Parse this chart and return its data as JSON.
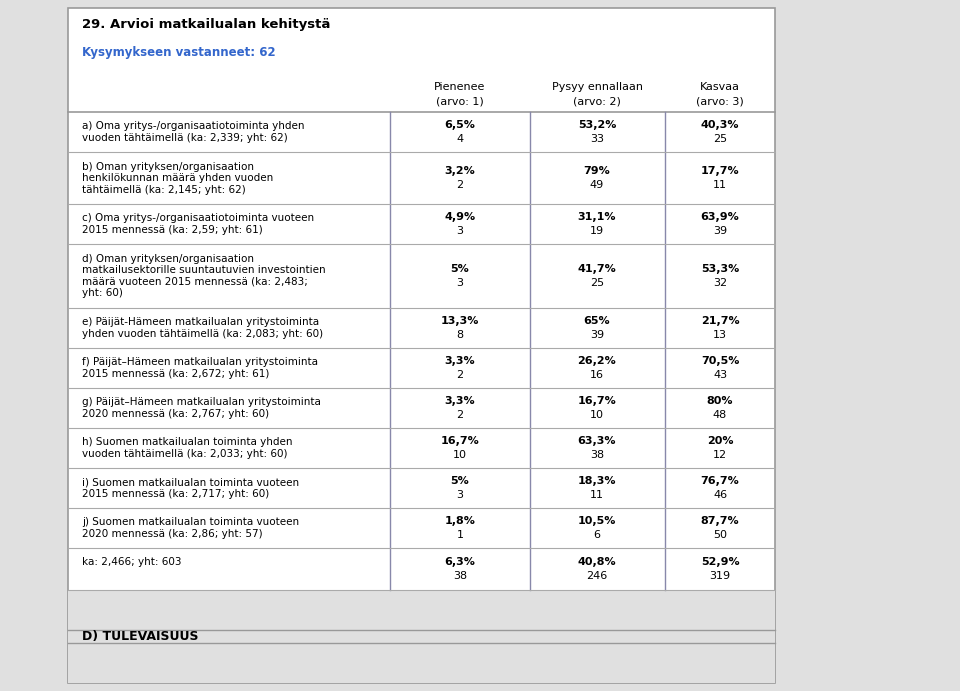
{
  "title": "29. Arvioi matkailualan kehitystä",
  "subtitle": "Kysymykseen vastanneet: 62",
  "col_headers": [
    [
      "Pienenee",
      "(arvo: 1)"
    ],
    [
      "Pysyy ennallaan",
      "(arvo: 2)"
    ],
    [
      "Kasvaa",
      "(arvo: 3)"
    ]
  ],
  "rows": [
    {
      "label": "a) Oma yritys-/organisaatiotoiminta yhden\nvuoden tähtäimellä (ka: 2,339; yht: 62)",
      "pct": [
        "6,5%",
        "53,2%",
        "40,3%"
      ],
      "count": [
        "4",
        "33",
        "25"
      ],
      "nlines": 2
    },
    {
      "label": "b) Oman yrityksen/organisaation\nhenkilökunnan määrä yhden vuoden\ntähtäimellä (ka: 2,145; yht: 62)",
      "pct": [
        "3,2%",
        "79%",
        "17,7%"
      ],
      "count": [
        "2",
        "49",
        "11"
      ],
      "nlines": 3
    },
    {
      "label": "c) Oma yritys-/organisaatiotoiminta vuoteen\n2015 mennessä (ka: 2,59; yht: 61)",
      "pct": [
        "4,9%",
        "31,1%",
        "63,9%"
      ],
      "count": [
        "3",
        "19",
        "39"
      ],
      "nlines": 2
    },
    {
      "label": "d) Oman yrityksen/organisaation\nmatkailusektorille suuntautuvien investointien\nmäärä vuoteen 2015 mennessä (ka: 2,483;\nyht: 60)",
      "pct": [
        "5%",
        "41,7%",
        "53,3%"
      ],
      "count": [
        "3",
        "25",
        "32"
      ],
      "nlines": 4
    },
    {
      "label": "e) Päijät-Hämeen matkailualan yritystoiminta\nyhden vuoden tähtäimellä (ka: 2,083; yht: 60)",
      "pct": [
        "13,3%",
        "65%",
        "21,7%"
      ],
      "count": [
        "8",
        "39",
        "13"
      ],
      "nlines": 2
    },
    {
      "label": "f) Päijät–Hämeen matkailualan yritystoiminta\n2015 mennessä (ka: 2,672; yht: 61)",
      "pct": [
        "3,3%",
        "26,2%",
        "70,5%"
      ],
      "count": [
        "2",
        "16",
        "43"
      ],
      "nlines": 2
    },
    {
      "label": "g) Päijät–Hämeen matkailualan yritystoiminta\n2020 mennessä (ka: 2,767; yht: 60)",
      "pct": [
        "3,3%",
        "16,7%",
        "80%"
      ],
      "count": [
        "2",
        "10",
        "48"
      ],
      "nlines": 2
    },
    {
      "label": "h) Suomen matkailualan toiminta yhden\nvuoden tähtäimellä (ka: 2,033; yht: 60)",
      "pct": [
        "16,7%",
        "63,3%",
        "20%"
      ],
      "count": [
        "10",
        "38",
        "12"
      ],
      "nlines": 2
    },
    {
      "label": "i) Suomen matkailualan toiminta vuoteen\n2015 mennessä (ka: 2,717; yht: 60)",
      "pct": [
        "5%",
        "18,3%",
        "76,7%"
      ],
      "count": [
        "3",
        "11",
        "46"
      ],
      "nlines": 2
    },
    {
      "label": "j) Suomen matkailualan toiminta vuoteen\n2020 mennessä (ka: 2,86; yht: 57)",
      "pct": [
        "1,8%",
        "10,5%",
        "87,7%"
      ],
      "count": [
        "1",
        "6",
        "50"
      ],
      "nlines": 2
    }
  ],
  "total_row": {
    "label": "ka: 2,466; yht: 603",
    "pct": [
      "6,3%",
      "40,8%",
      "52,9%"
    ],
    "count": [
      "38",
      "246",
      "319"
    ]
  },
  "footer": "D) TULEVAISUUS",
  "bg_color": "#e0e0e0",
  "table_bg": "#ffffff",
  "gray_bg": "#e0e0e0",
  "subtitle_color": "#3366cc",
  "border_color": "#999999",
  "cell_border_color": "#8888aa",
  "row_line_color": "#aaaaaa"
}
